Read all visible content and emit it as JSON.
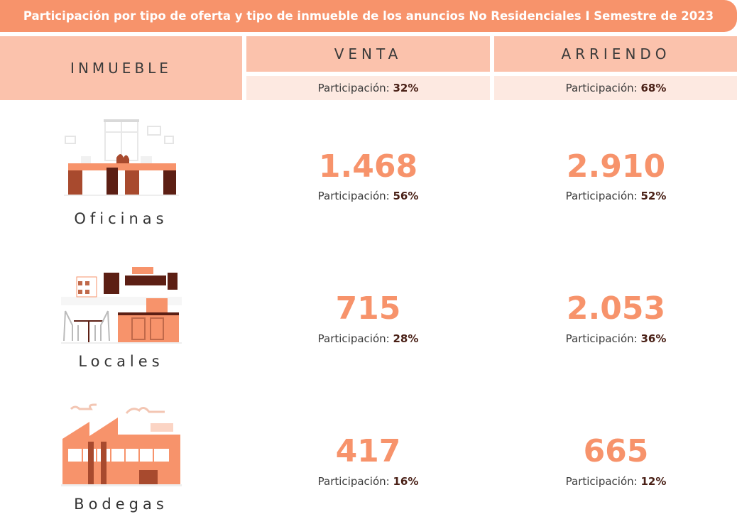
{
  "title": "Participación por tipo de oferta y tipo de inmueble de los anuncios No Residenciales I Semestre de 2023",
  "header": {
    "inmueble": "INMUEBLE",
    "venta": "VENTA",
    "arriendo": "ARRIENDO",
    "participacion_label": "Participación:",
    "venta_pct": "32%",
    "arriendo_pct": "68%"
  },
  "rows": [
    {
      "label": "Oficinas",
      "icon": "office-illustration",
      "venta_value": "1.468",
      "venta_pct": "56%",
      "arriendo_value": "2.910",
      "arriendo_pct": "52%"
    },
    {
      "label": "Locales",
      "icon": "coffee-shop-illustration",
      "venta_value": "715",
      "venta_pct": "28%",
      "arriendo_value": "2.053",
      "arriendo_pct": "36%"
    },
    {
      "label": "Bodegas",
      "icon": "warehouse-illustration",
      "venta_value": "417",
      "venta_pct": "16%",
      "arriendo_value": "665",
      "arriendo_pct": "12%"
    }
  ],
  "colors": {
    "accent": "#f7936b",
    "header_bg": "#fbc2ac",
    "subheader_bg": "#fde9e1",
    "dark": "#4a2117"
  }
}
